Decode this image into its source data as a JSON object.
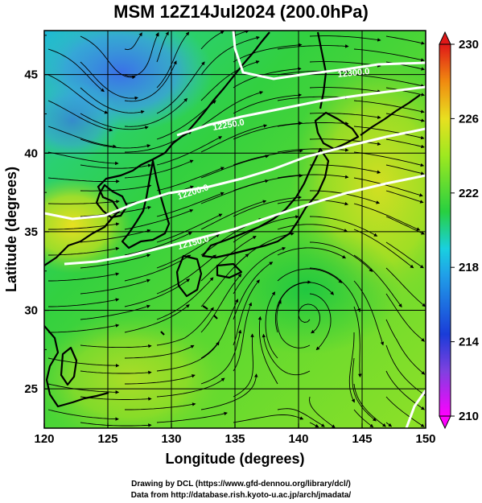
{
  "title": "MSM 12Z14Jul2024 (200.0hPa)",
  "x_axis": {
    "label": "Longitude (degrees)",
    "ticks": [
      "120",
      "125",
      "130",
      "135",
      "140",
      "145",
      "150"
    ],
    "range": [
      120,
      150
    ]
  },
  "y_axis": {
    "label": "Latitude  (degrees)",
    "ticks": [
      "25",
      "30",
      "35",
      "40",
      "45"
    ],
    "range": [
      22.5,
      47.8
    ]
  },
  "colorbar": {
    "ticks": [
      "210",
      "214",
      "218",
      "222",
      "226",
      "230"
    ],
    "range": [
      210,
      230
    ]
  },
  "contour_labels": [
    "12300.0",
    "12250.0",
    "12200.0",
    "12150.0"
  ],
  "credits": {
    "line1": "Drawing by DCL (https://www.gfd-dennou.org/library/dcl/)",
    "line2": "Data from http://database.rish.kyoto-u.ac.jp/arch/jmadata/"
  },
  "colors": {
    "magenta": "#ff00ff",
    "blue": "#1a3cd8",
    "cyan": "#19d0e0",
    "green": "#28d040",
    "yellow_green": "#aee820",
    "yellow": "#e8e020",
    "orange": "#f08a10",
    "red": "#e01818"
  }
}
